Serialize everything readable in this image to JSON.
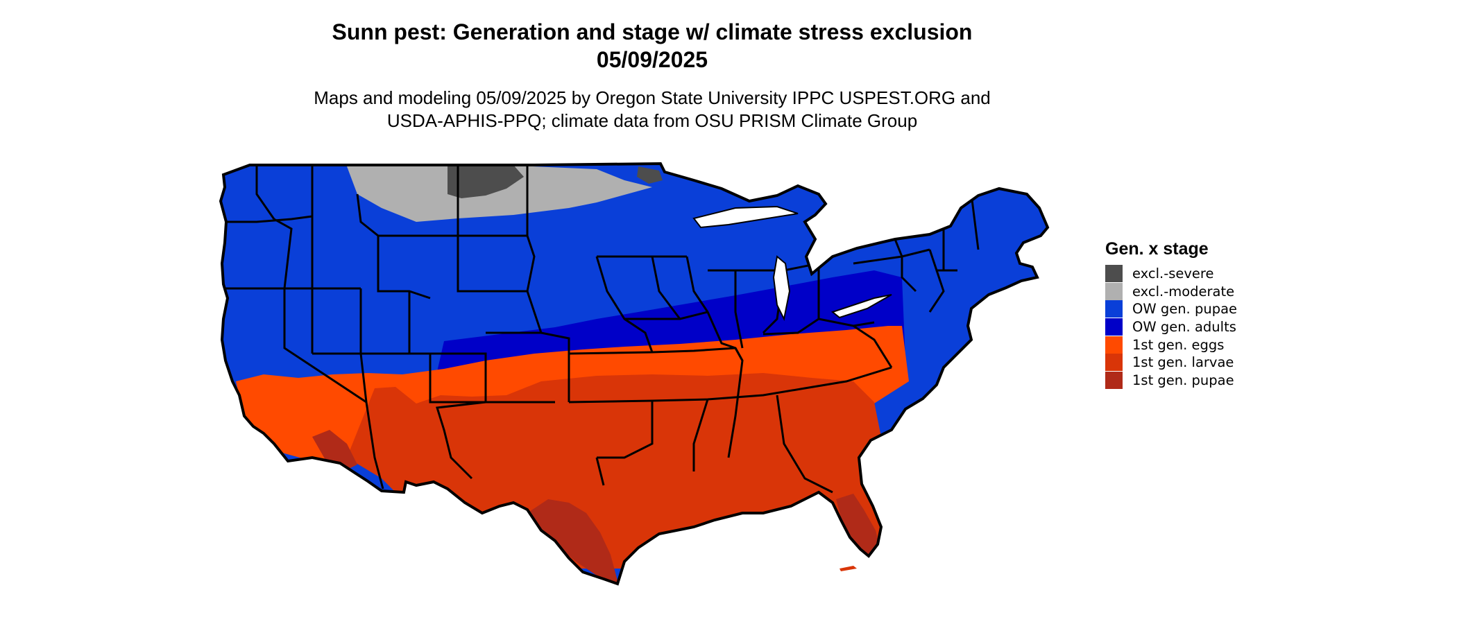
{
  "title_line1": "Sunn pest: Generation and stage w/ climate stress exclusion",
  "title_line2": "05/09/2025",
  "subtitle_line1": "Maps and modeling 05/09/2025 by Oregon State University IPPC USPEST.ORG and",
  "subtitle_line2": "USDA-APHIS-PPQ; climate data from OSU PRISM Climate Group",
  "legend": {
    "title": "Gen. x stage",
    "items": [
      {
        "label": "excl.-severe",
        "color": "#4d4d4d"
      },
      {
        "label": "excl.-moderate",
        "color": "#b0b0b0"
      },
      {
        "label": "OW gen. pupae",
        "color": "#0a3fd8"
      },
      {
        "label": "OW gen. adults",
        "color": "#0000c8"
      },
      {
        "label": "1st gen. eggs",
        "color": "#ff4a00"
      },
      {
        "label": "1st gen. larvae",
        "color": "#d93508"
      },
      {
        "label": "1st gen. pupae",
        "color": "#b02a18"
      }
    ]
  }
}
